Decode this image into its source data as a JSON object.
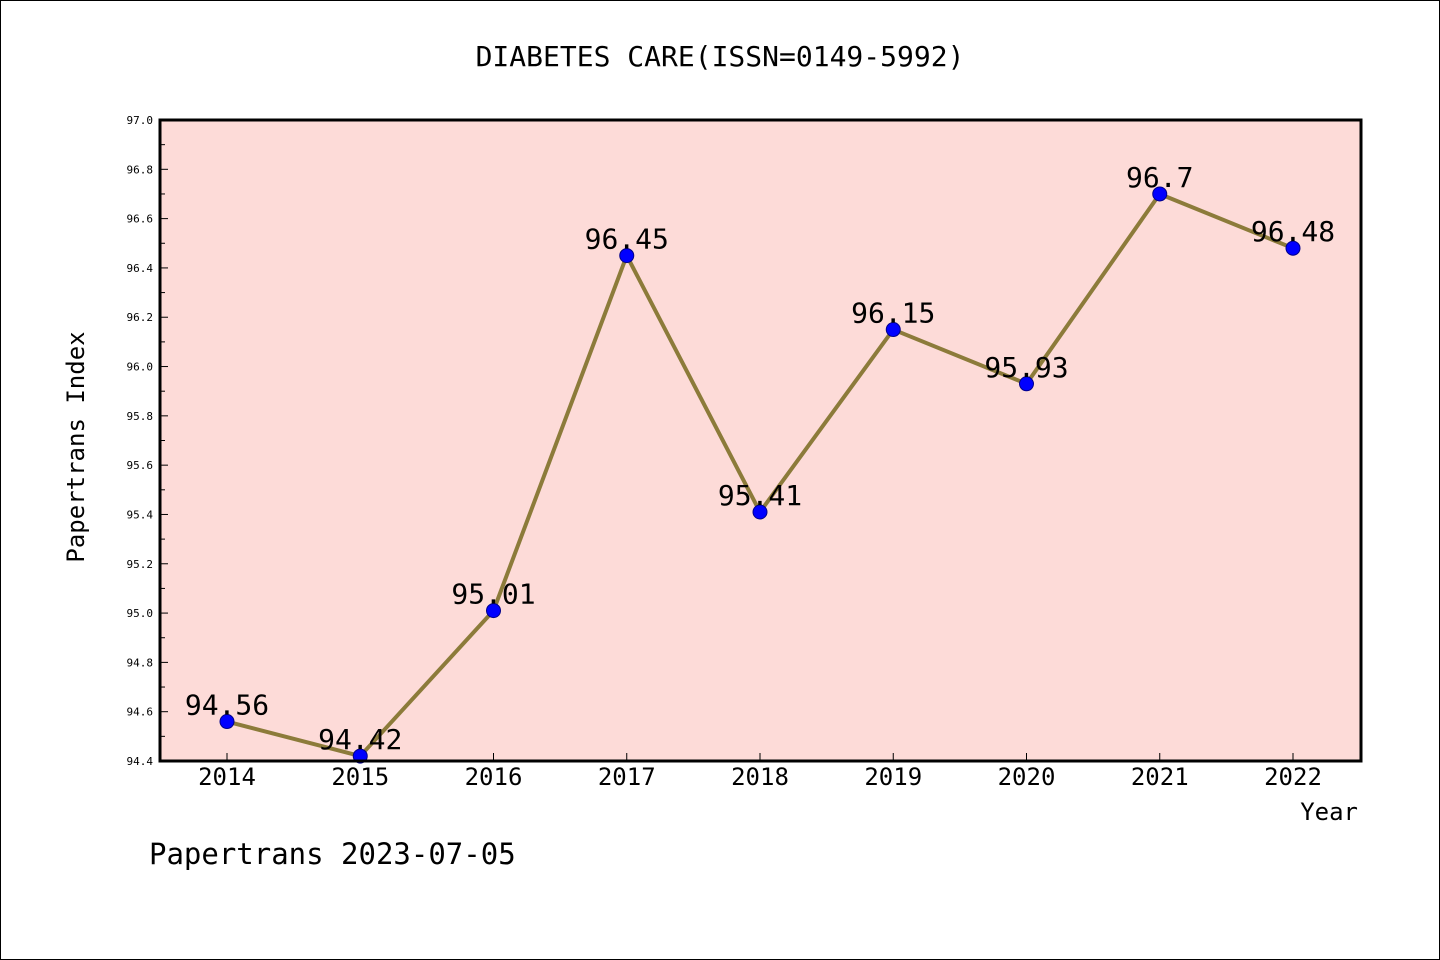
{
  "chart_data": {
    "type": "line",
    "title": "DIABETES CARE(ISSN=0149-5992)",
    "xlabel": "Year",
    "ylabel": "Papertrans Index",
    "categories": [
      "2014",
      "2015",
      "2016",
      "2017",
      "2018",
      "2019",
      "2020",
      "2021",
      "2022"
    ],
    "values": [
      94.56,
      94.42,
      95.01,
      96.45,
      95.41,
      96.15,
      95.93,
      96.7,
      96.48
    ],
    "data_labels": [
      "94.56",
      "94.42",
      "95.01",
      "96.45",
      "95.41",
      "96.15",
      "95.93",
      "96.7",
      "96.48"
    ],
    "ylim": [
      94.4,
      97.0
    ],
    "yticks": [
      "94.4",
      "94.6",
      "94.8",
      "95.0",
      "95.2",
      "95.4",
      "95.6",
      "95.8",
      "96.0",
      "96.2",
      "96.4",
      "96.6",
      "96.8",
      "97.0"
    ],
    "grid": false,
    "legend": "none",
    "colors": {
      "plot_background": "#fddbd8",
      "line": "#8c7b3a",
      "marker": "#0000ff",
      "axes": "#000000"
    }
  },
  "footer": {
    "watermark": "Papertrans 2023-07-05"
  }
}
